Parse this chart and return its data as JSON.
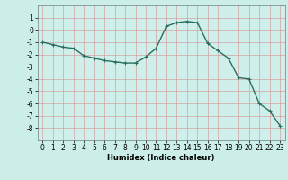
{
  "x": [
    0,
    1,
    2,
    3,
    4,
    5,
    6,
    7,
    8,
    9,
    10,
    11,
    12,
    13,
    14,
    15,
    16,
    17,
    18,
    19,
    20,
    21,
    22,
    23
  ],
  "y": [
    -1.0,
    -1.2,
    -1.4,
    -1.5,
    -2.1,
    -2.3,
    -2.5,
    -2.6,
    -2.7,
    -2.7,
    -2.2,
    -1.5,
    0.3,
    0.6,
    0.7,
    0.6,
    -1.1,
    -1.7,
    -2.3,
    -3.9,
    -4.0,
    -6.0,
    -6.6,
    -7.8
  ],
  "line_color": "#2a6e60",
  "marker": "+",
  "marker_size": 3,
  "marker_linewidth": 0.8,
  "xlabel": "Humidex (Indice chaleur)",
  "xlabel_fontsize": 6,
  "ylim": [
    -9,
    2
  ],
  "xlim": [
    -0.5,
    23.5
  ],
  "yticks": [
    -8,
    -7,
    -6,
    -5,
    -4,
    -3,
    -2,
    -1,
    0,
    1
  ],
  "xticks": [
    0,
    1,
    2,
    3,
    4,
    5,
    6,
    7,
    8,
    9,
    10,
    11,
    12,
    13,
    14,
    15,
    16,
    17,
    18,
    19,
    20,
    21,
    22,
    23
  ],
  "tick_fontsize": 5.5,
  "background_color": "#cceee8",
  "plot_bg_color": "#cff0ea",
  "grid_color": "#d4a0a0",
  "line_width": 1.0,
  "fig_width": 3.2,
  "fig_height": 2.0,
  "fig_dpi": 100
}
